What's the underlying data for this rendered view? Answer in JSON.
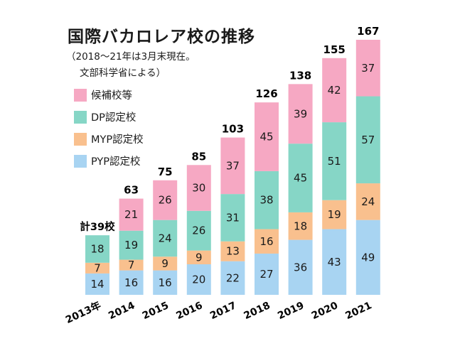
{
  "title": "国際バカロレア校の推移",
  "notes": [
    "（2018〜21年は3月末現在。",
    "文部科学省による）"
  ],
  "first_total_label": "計39校",
  "chart_data": {
    "type": "bar",
    "stacked": true,
    "title": "国際バカロレア校の推移",
    "categories": [
      "2013年",
      "2014",
      "2015",
      "2016",
      "2017",
      "2018",
      "2019",
      "2020",
      "2021"
    ],
    "series": [
      {
        "name": "PYP認定校",
        "color": "#a8d4f2",
        "values": [
          14,
          16,
          16,
          20,
          22,
          27,
          36,
          43,
          49
        ]
      },
      {
        "name": "MYP認定校",
        "color": "#f9c08e",
        "values": [
          7,
          7,
          9,
          9,
          13,
          16,
          18,
          19,
          24
        ]
      },
      {
        "name": "DP認定校",
        "color": "#86d6c6",
        "values": [
          18,
          19,
          24,
          26,
          31,
          38,
          45,
          51,
          57
        ]
      },
      {
        "name": "候補校等",
        "color": "#f6a8c3",
        "values": [
          null,
          21,
          26,
          30,
          37,
          45,
          39,
          42,
          37
        ]
      }
    ],
    "totals": [
      39,
      63,
      75,
      85,
      103,
      126,
      138,
      155,
      167
    ],
    "ylim": [
      0,
      167
    ],
    "legend_order": [
      "候補校等",
      "DP認定校",
      "MYP認定校",
      "PYP認定校"
    ],
    "legend_position": "top-left"
  }
}
